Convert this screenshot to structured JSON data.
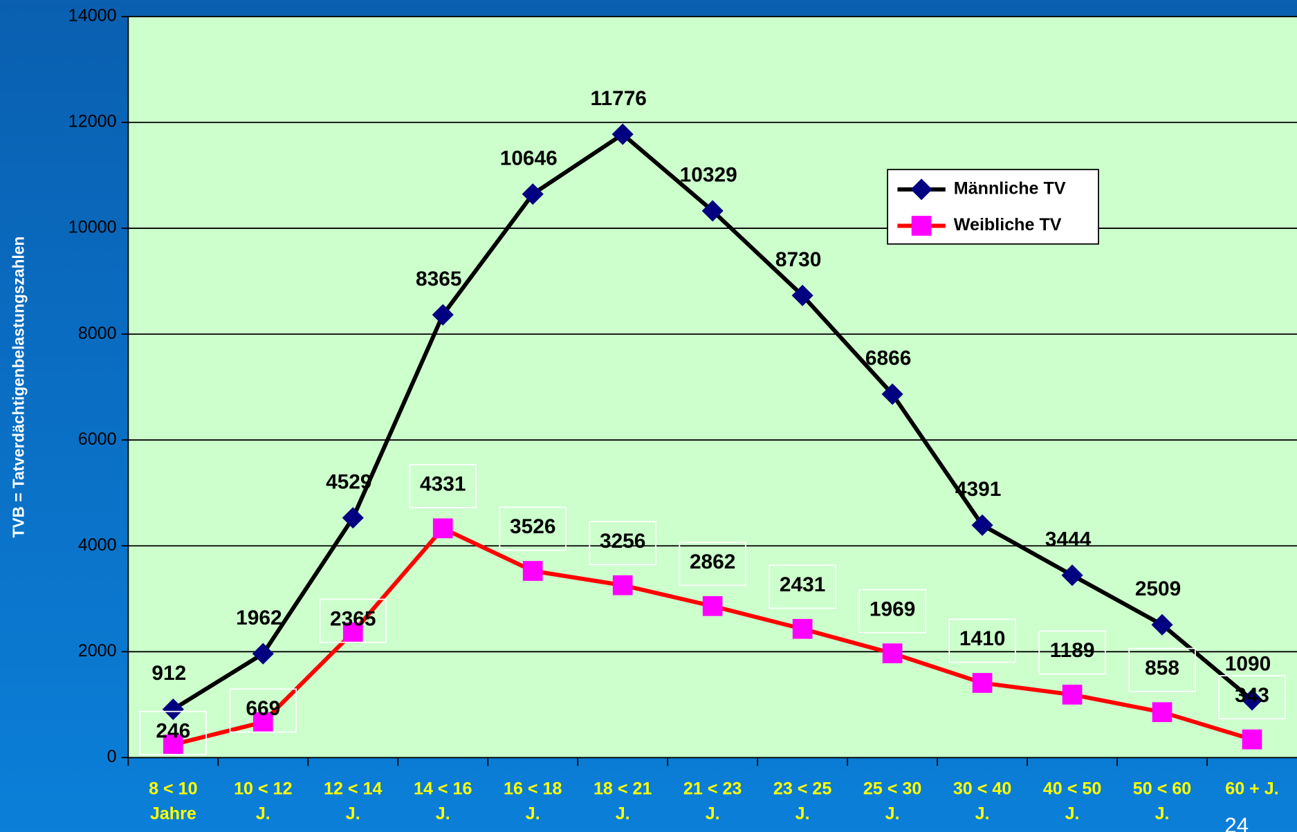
{
  "chart_data": {
    "type": "line",
    "ylabel": "TVB = Tatverdächtigenbelastungszahlen",
    "categories": [
      [
        "8 < 10",
        "Jahre"
      ],
      [
        "10 < 12",
        "J."
      ],
      [
        "12 < 14",
        "J."
      ],
      [
        "14 < 16",
        "J."
      ],
      [
        "16 < 18",
        "J."
      ],
      [
        "18 < 21",
        "J."
      ],
      [
        "21 < 23",
        "J."
      ],
      [
        "23 < 25",
        "J."
      ],
      [
        "25 < 30",
        "J."
      ],
      [
        "30 < 40",
        "J."
      ],
      [
        "40 < 50",
        "J."
      ],
      [
        "50 < 60",
        "J."
      ],
      [
        "60 + J."
      ]
    ],
    "series": [
      {
        "name": "Männliche TV",
        "color": "#000000",
        "marker_color": "#000080",
        "marker": "diamond",
        "values": [
          912,
          1962,
          4529,
          8365,
          10646,
          11776,
          10329,
          8730,
          6866,
          4391,
          3444,
          2509,
          1090
        ]
      },
      {
        "name": "Weibliche TV",
        "color": "#ff0000",
        "marker_color": "#ff00ff",
        "marker": "square",
        "values": [
          246,
          669,
          2365,
          4331,
          3526,
          3256,
          2862,
          2431,
          1969,
          1410,
          1189,
          858,
          343
        ]
      }
    ],
    "ylim": [
      0,
      14000
    ],
    "yticks": [
      0,
      2000,
      4000,
      6000,
      8000,
      10000,
      12000,
      14000
    ],
    "grid": true,
    "legend": "upper right",
    "page_number": "24"
  }
}
